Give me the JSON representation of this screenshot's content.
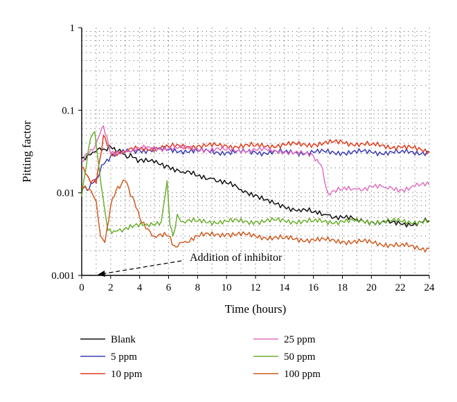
{
  "chart_data": {
    "type": "line",
    "title": "",
    "xlabel": "Time (hours)",
    "ylabel": "Pitting factor",
    "xlim": [
      0,
      24
    ],
    "ylim": [
      0.001,
      1
    ],
    "yscale": "log",
    "grid": "dotted",
    "x_ticks": [
      "0",
      "2",
      "4",
      "6",
      "8",
      "10",
      "12",
      "14",
      "16",
      "18",
      "20",
      "22",
      "24"
    ],
    "y_ticks": [
      "0.001",
      "0.01",
      "0.1",
      "1"
    ],
    "legend_position": "bottom",
    "annotation": {
      "text": "Addition of inhibitor",
      "x": 1,
      "y": 0.001
    },
    "series": [
      {
        "name": "Blank",
        "color": "#111111",
        "x": [
          0,
          0.5,
          1,
          1.5,
          2,
          2.5,
          3,
          3.5,
          4,
          5,
          6,
          7,
          8,
          9,
          10,
          11,
          12,
          13,
          14,
          15,
          16,
          17,
          18,
          19,
          20,
          21,
          22,
          23,
          24
        ],
        "y": [
          0.026,
          0.029,
          0.032,
          0.034,
          0.036,
          0.032,
          0.029,
          0.027,
          0.025,
          0.023,
          0.021,
          0.018,
          0.016,
          0.015,
          0.013,
          0.011,
          0.0095,
          0.0075,
          0.0068,
          0.0063,
          0.0058,
          0.0054,
          0.005,
          0.0047,
          0.0045,
          0.0043,
          0.0042,
          0.0043,
          0.0046
        ]
      },
      {
        "name": "5 ppm",
        "color": "#3b3bb5",
        "x": [
          0,
          0.5,
          1,
          1.5,
          2,
          3,
          4,
          6,
          8,
          10,
          12,
          14,
          16,
          18,
          20,
          22,
          24
        ],
        "y": [
          0.012,
          0.011,
          0.015,
          0.022,
          0.028,
          0.031,
          0.033,
          0.033,
          0.032,
          0.031,
          0.031,
          0.031,
          0.031,
          0.031,
          0.031,
          0.031,
          0.031
        ]
      },
      {
        "name": "10 ppm",
        "color": "#e03a1a",
        "x": [
          0,
          0.5,
          1,
          1.5,
          2,
          3,
          4,
          6,
          8,
          10,
          12,
          14,
          16,
          18,
          20,
          22,
          24
        ],
        "y": [
          0.02,
          0.015,
          0.013,
          0.05,
          0.03,
          0.032,
          0.034,
          0.036,
          0.037,
          0.037,
          0.037,
          0.038,
          0.039,
          0.041,
          0.038,
          0.036,
          0.032
        ]
      },
      {
        "name": "25 ppm",
        "color": "#e070c0",
        "x": [
          0,
          0.5,
          1,
          1.5,
          2,
          3,
          4,
          6,
          8,
          10,
          12,
          14,
          16,
          16.5,
          17,
          18,
          19,
          20,
          21,
          22,
          23,
          24
        ],
        "y": [
          0.025,
          0.03,
          0.04,
          0.065,
          0.03,
          0.032,
          0.034,
          0.035,
          0.034,
          0.033,
          0.033,
          0.032,
          0.028,
          0.022,
          0.01,
          0.011,
          0.011,
          0.012,
          0.0115,
          0.011,
          0.012,
          0.0125
        ]
      },
      {
        "name": "50 ppm",
        "color": "#6aae2c",
        "x": [
          0,
          0.3,
          0.6,
          0.9,
          1.2,
          1.5,
          1.8,
          2.5,
          3.5,
          4.5,
          5.5,
          5.9,
          6.1,
          6.3,
          6.6,
          7,
          8,
          10,
          12,
          14,
          16,
          18,
          20,
          22,
          24
        ],
        "y": [
          0.009,
          0.02,
          0.045,
          0.055,
          0.02,
          0.008,
          0.0035,
          0.0035,
          0.0038,
          0.0042,
          0.0045,
          0.014,
          0.004,
          0.003,
          0.0055,
          0.0045,
          0.0045,
          0.0045,
          0.0045,
          0.0046,
          0.0045,
          0.0045,
          0.0045,
          0.0045,
          0.0045
        ]
      },
      {
        "name": "100 ppm",
        "color": "#cf5a1e",
        "x": [
          0,
          0.5,
          1,
          1.3,
          1.6,
          2,
          2.5,
          3,
          3.5,
          4,
          5,
          6,
          6.5,
          7,
          8,
          10,
          12,
          14,
          16,
          18,
          20,
          22,
          24
        ],
        "y": [
          0.012,
          0.011,
          0.008,
          0.003,
          0.0025,
          0.007,
          0.012,
          0.014,
          0.009,
          0.005,
          0.003,
          0.003,
          0.0022,
          0.0025,
          0.003,
          0.0032,
          0.003,
          0.0028,
          0.0027,
          0.0026,
          0.0025,
          0.0023,
          0.0021
        ]
      }
    ]
  }
}
